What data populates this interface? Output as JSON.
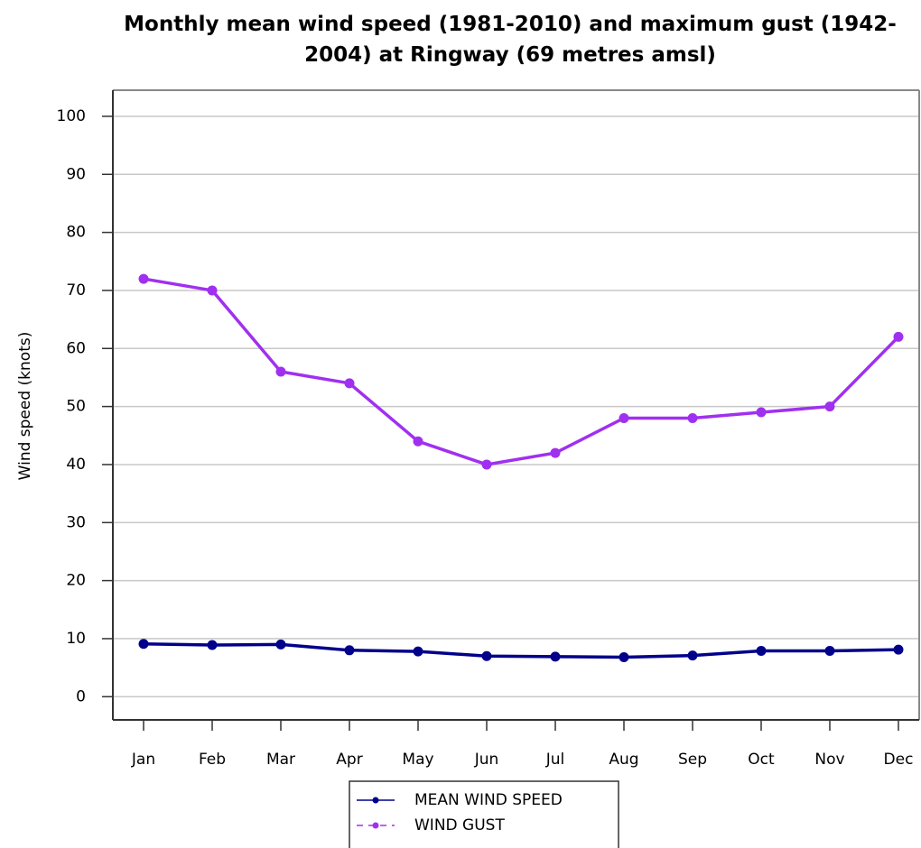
{
  "chart_data": {
    "type": "line",
    "title": "Monthly mean wind speed (1981-2010) and maximum gust (1942-2004) at Ringway (69 metres amsl)",
    "y_label": "Wind speed (knots)",
    "categories": [
      "Jan",
      "Feb",
      "Mar",
      "Apr",
      "May",
      "Jun",
      "Jul",
      "Aug",
      "Sep",
      "Oct",
      "Nov",
      "Dec"
    ],
    "series": [
      {
        "name": "MEAN WIND SPEED",
        "color": "#00008b",
        "dashed_legend": false,
        "values": [
          9.1,
          8.9,
          9.0,
          8.0,
          7.8,
          7.0,
          6.9,
          6.8,
          7.1,
          7.9,
          7.9,
          8.1
        ]
      },
      {
        "name": "WIND GUST",
        "color": "#a030f0",
        "dashed_legend": true,
        "values": [
          72,
          70,
          56,
          54,
          44,
          40,
          42,
          48,
          48,
          49,
          50,
          62
        ]
      }
    ],
    "ylim": [
      -4,
      104.5
    ],
    "yticks": [
      0,
      10,
      20,
      30,
      40,
      50,
      60,
      70,
      80,
      90,
      100
    ],
    "grid": true,
    "legend": "bottom"
  }
}
